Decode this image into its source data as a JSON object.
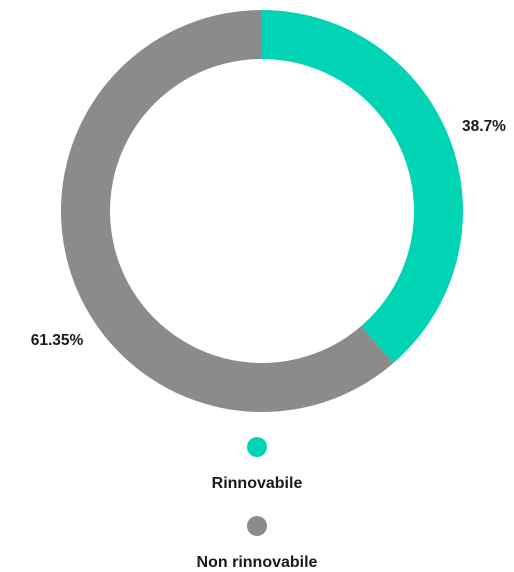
{
  "chart_data": {
    "type": "pie",
    "donut": true,
    "slices": [
      {
        "name": "Rinnovabile",
        "value": 38.7,
        "label": "38.7%",
        "color": "#00d4b4"
      },
      {
        "name": "Non rinnovabile",
        "value": 61.35,
        "label": "61.35%",
        "color": "#8a8c8c"
      }
    ],
    "legend_position": "bottom"
  }
}
